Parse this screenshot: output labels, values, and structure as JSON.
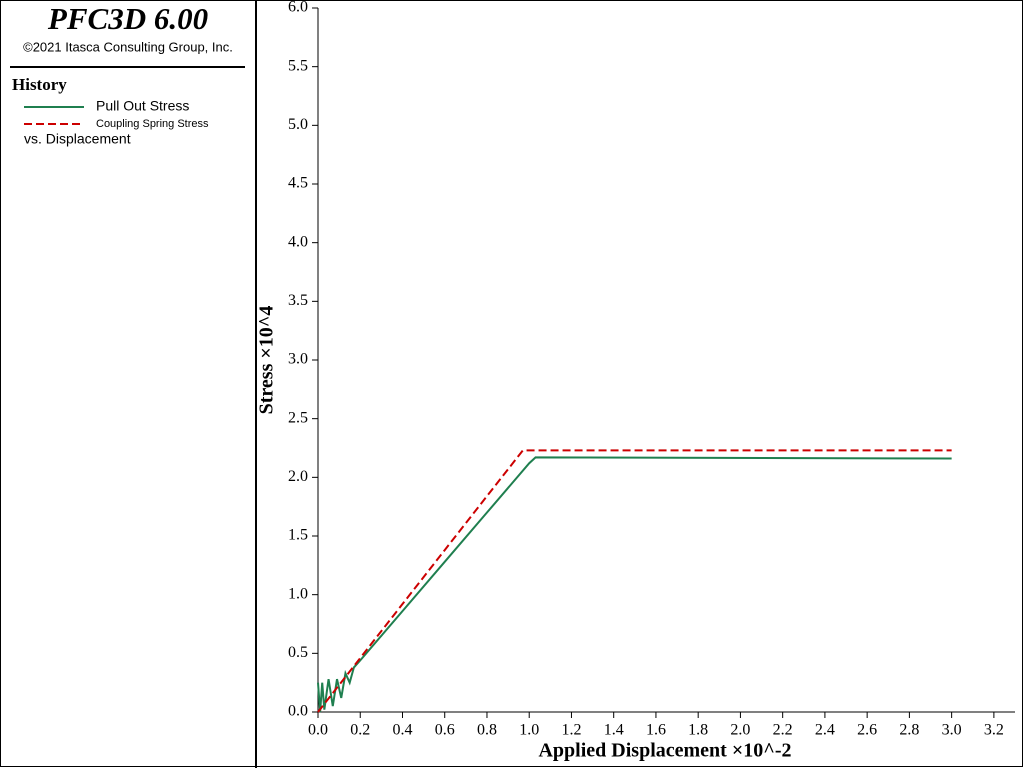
{
  "header": {
    "title": "PFC3D 6.00",
    "copyright": "©2021 Itasca Consulting Group, Inc."
  },
  "chart_data": {
    "type": "line",
    "legend_title": "History",
    "legend_note": "vs. Displacement",
    "x_label": "Applied Displacement ×10^-2",
    "y_label": "Stress ×10^4",
    "xlim": [
      0,
      3.3
    ],
    "ylim": [
      0,
      6.0
    ],
    "xticks": [
      {
        "value": 0,
        "label": "0.0"
      },
      0.2,
      0.4,
      0.6,
      0.8,
      {
        "value": 1,
        "label": "1.0"
      },
      1.2,
      1.4,
      1.6,
      1.8,
      {
        "value": 2,
        "label": "2.0"
      },
      2.2,
      2.4,
      2.6,
      2.8,
      {
        "value": 3,
        "label": "3.0"
      },
      3.2
    ],
    "yticks": [
      {
        "value": 0,
        "label": "0.0"
      },
      0.5,
      {
        "value": 1,
        "label": "1.0"
      },
      1.5,
      {
        "value": 2,
        "label": "2.0"
      },
      2.5,
      {
        "value": 3,
        "label": "3.0"
      },
      3.5,
      {
        "value": 4,
        "label": "4.0"
      },
      4.5,
      {
        "value": 5,
        "label": "5.0"
      },
      5.5,
      {
        "value": 6,
        "label": "6.0"
      }
    ],
    "series": [
      {
        "name": "Pull Out Stress",
        "color": "#1f7f4f",
        "style": "solid",
        "x": [
          0,
          0.01,
          0.02,
          0.03,
          0.05,
          0.07,
          0.09,
          0.11,
          0.13,
          0.15,
          0.17,
          0.2,
          0.4,
          0.6,
          0.8,
          1.0,
          1.03,
          3.0
        ],
        "values": [
          0.25,
          0.0,
          0.25,
          0.02,
          0.28,
          0.05,
          0.28,
          0.12,
          0.33,
          0.25,
          0.38,
          0.44,
          0.86,
          1.28,
          1.7,
          2.12,
          2.17,
          2.16
        ]
      },
      {
        "name": "Coupling Spring Stress",
        "color": "#cc0000",
        "style": "dashed",
        "x": [
          0,
          0.2,
          0.4,
          0.6,
          0.8,
          0.97,
          3.0
        ],
        "values": [
          0,
          0.46,
          0.92,
          1.38,
          1.84,
          2.23,
          2.23
        ]
      }
    ]
  }
}
